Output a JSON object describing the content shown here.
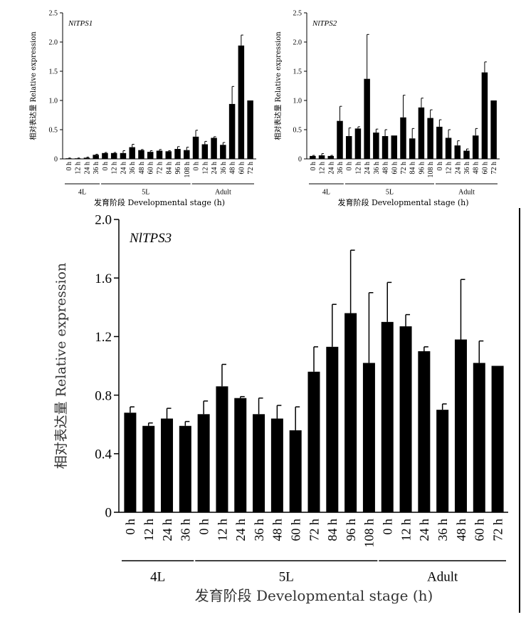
{
  "chart_data": [
    {
      "type": "bar",
      "title": "NlTPS1",
      "ylabel": "相对表达量 Relative expression",
      "xlabel": "发育阶段 Developmental stage (h)",
      "ylim": [
        0,
        2.5
      ],
      "yticks": [
        "0",
        "0.5",
        "1.0",
        "1.5",
        "2.0",
        "2.5"
      ],
      "categories": [
        "0 h",
        "12 h",
        "24 h",
        "36 h",
        "0 h",
        "12 h",
        "24 h",
        "36 h",
        "48 h",
        "60 h",
        "72 h",
        "84 h",
        "96 h",
        "108 h",
        "0 h",
        "12 h",
        "24 h",
        "36 h",
        "48 h",
        "60 h",
        "72 h"
      ],
      "values": [
        0.01,
        0.01,
        0.02,
        0.07,
        0.1,
        0.1,
        0.1,
        0.2,
        0.15,
        0.12,
        0.14,
        0.13,
        0.17,
        0.15,
        0.38,
        0.25,
        0.36,
        0.24,
        0.94,
        1.94,
        1.0
      ],
      "errors": [
        0.005,
        0.005,
        0.01,
        0.01,
        0.01,
        0.01,
        0.04,
        0.05,
        0.01,
        0.02,
        0.02,
        0.01,
        0.04,
        0.05,
        0.11,
        0.05,
        0.02,
        0.04,
        0.3,
        0.18,
        0
      ],
      "groups": [
        {
          "label": "4L",
          "start": 0,
          "end": 3
        },
        {
          "label": "5L",
          "start": 4,
          "end": 13
        },
        {
          "label": "Adult",
          "start": 14,
          "end": 20
        }
      ]
    },
    {
      "type": "bar",
      "title": "NlTPS2",
      "ylabel": "相对表达量 Relative expression",
      "xlabel": "发育阶段 Developmental stage (h)",
      "ylim": [
        0,
        2.5
      ],
      "yticks": [
        "0",
        "0.5",
        "1.0",
        "1.5",
        "2.0",
        "2.5"
      ],
      "categories": [
        "0 h",
        "12 h",
        "24 h",
        "36 h",
        "0 h",
        "12 h",
        "24 h",
        "36 h",
        "48 h",
        "60 h",
        "72 h",
        "84 h",
        "96 h",
        "108 h",
        "0 h",
        "12 h",
        "24 h",
        "36 h",
        "48 h",
        "60 h",
        "72 h"
      ],
      "values": [
        0.05,
        0.06,
        0.05,
        0.65,
        0.39,
        0.52,
        1.37,
        0.45,
        0.39,
        0.4,
        0.71,
        0.35,
        0.88,
        0.7,
        0.55,
        0.36,
        0.23,
        0.14,
        0.4,
        1.48,
        1.0
      ],
      "errors": [
        0.01,
        0.03,
        0.01,
        0.25,
        0.14,
        0.03,
        0.76,
        0.06,
        0.11,
        0,
        0.38,
        0.17,
        0.16,
        0.14,
        0.12,
        0.14,
        0.08,
        0.03,
        0.12,
        0.18,
        0
      ],
      "groups": [
        {
          "label": "4L",
          "start": 0,
          "end": 3
        },
        {
          "label": "5L",
          "start": 4,
          "end": 13
        },
        {
          "label": "Adult",
          "start": 14,
          "end": 20
        }
      ]
    },
    {
      "type": "bar",
      "title": "NlTPS3",
      "ylabel": "相对表达量 Relative expression",
      "xlabel": "发育阶段 Developmental stage (h)",
      "ylim": [
        0,
        2.0
      ],
      "yticks": [
        "0",
        "0.4",
        "0.8",
        "1.2",
        "1.6",
        "2.0"
      ],
      "categories": [
        "0 h",
        "12 h",
        "24 h",
        "36 h",
        "0 h",
        "12 h",
        "24 h",
        "36 h",
        "48 h",
        "60 h",
        "72 h",
        "84 h",
        "96 h",
        "108 h",
        "0 h",
        "12 h",
        "24 h",
        "36 h",
        "48 h",
        "60 h",
        "72 h"
      ],
      "values": [
        0.68,
        0.59,
        0.64,
        0.59,
        0.67,
        0.86,
        0.78,
        0.67,
        0.64,
        0.56,
        0.96,
        1.13,
        1.36,
        1.02,
        1.3,
        1.27,
        1.1,
        0.7,
        1.18,
        1.02,
        1.0
      ],
      "errors": [
        0.04,
        0.02,
        0.07,
        0.03,
        0.09,
        0.15,
        0.01,
        0.11,
        0.09,
        0.16,
        0.17,
        0.29,
        0.43,
        0.48,
        0.27,
        0.08,
        0.03,
        0.04,
        0.41,
        0.15,
        0
      ],
      "groups": [
        {
          "label": "4L",
          "start": 0,
          "end": 3
        },
        {
          "label": "5L",
          "start": 4,
          "end": 13
        },
        {
          "label": "Adult",
          "start": 14,
          "end": 20
        }
      ]
    }
  ]
}
